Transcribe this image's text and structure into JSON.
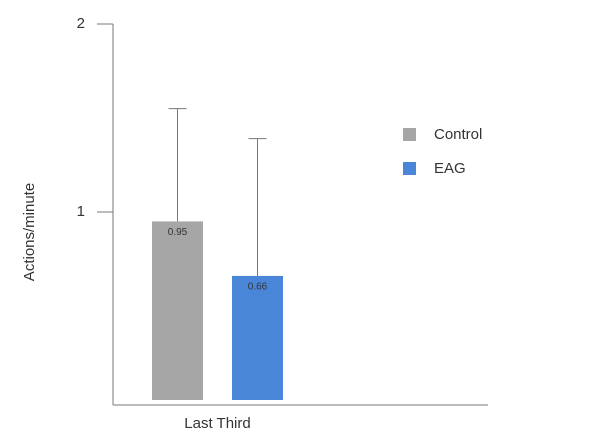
{
  "chart_data": {
    "type": "bar",
    "y_label": "Actions/minute",
    "categories": [
      "Last Third"
    ],
    "series": [
      {
        "name": "Control",
        "color": "#a6a6a6",
        "values": [
          0.95
        ],
        "errors": [
          0.6
        ]
      },
      {
        "name": "EAG",
        "color": "#4a86d8",
        "values": [
          0.66
        ],
        "errors": [
          0.73
        ]
      }
    ],
    "ylim": [
      0,
      2
    ],
    "yticks": [
      1,
      2
    ],
    "legend": "right"
  }
}
